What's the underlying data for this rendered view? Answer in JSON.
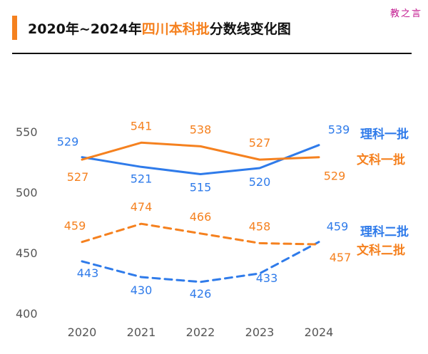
{
  "watermark": "教之言",
  "title": {
    "prefix": "2020年~2024年",
    "highlight": "四川本科批",
    "suffix": "分数线变化图"
  },
  "colors": {
    "blue": "#2f7bea",
    "orange": "#f5811f",
    "accent": "#f5811f"
  },
  "chart_data": {
    "type": "line",
    "title": "2020年~2024年四川本科批分数线变化图",
    "x": [
      "2020",
      "2021",
      "2022",
      "2023",
      "2024"
    ],
    "ylim": [
      400,
      560
    ],
    "yticks": [
      400,
      450,
      500,
      550
    ],
    "grid": false,
    "legend": "right (inline labels)",
    "series": [
      {
        "name": "理科一批",
        "color": "#2f7bea",
        "dash": false,
        "values": [
          529,
          521,
          515,
          520,
          539
        ]
      },
      {
        "name": "文科一批",
        "color": "#f5811f",
        "dash": false,
        "values": [
          527,
          541,
          538,
          527,
          529
        ]
      },
      {
        "name": "理科二批",
        "color": "#2f7bea",
        "dash": true,
        "values": [
          443,
          430,
          426,
          433,
          459
        ]
      },
      {
        "name": "文科二批",
        "color": "#f5811f",
        "dash": true,
        "values": [
          459,
          474,
          466,
          458,
          457
        ]
      }
    ]
  }
}
